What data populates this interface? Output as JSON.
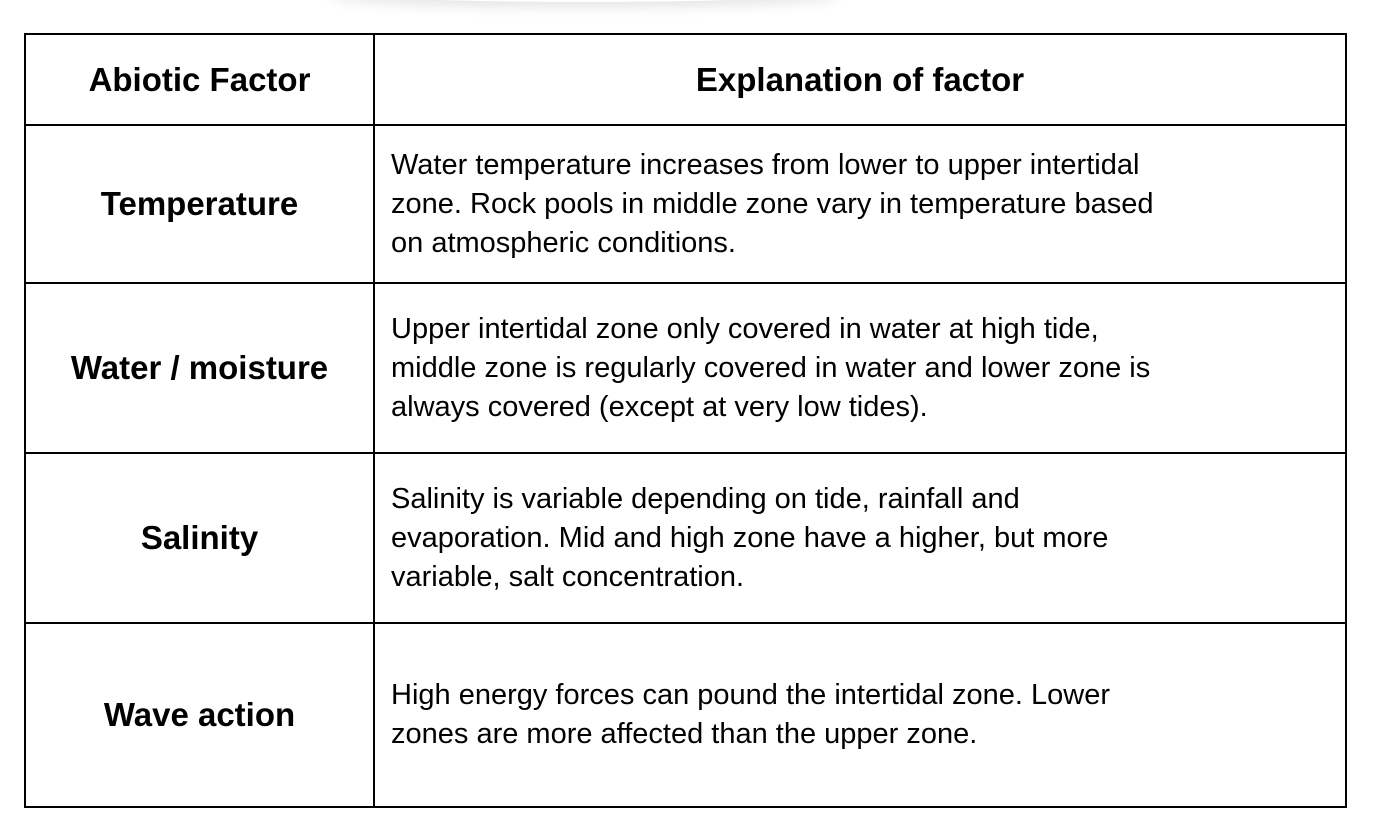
{
  "table": {
    "header": [
      "Abiotic Factor",
      "Explanation of factor"
    ],
    "rows": [
      {
        "factor": "Temperature",
        "explanation": [
          "Water temperature increases from lower to upper intertidal",
          "zone. Rock pools in middle zone vary in temperature based",
          "on atmospheric conditions."
        ]
      },
      {
        "factor": "Water / moisture",
        "explanation": [
          "Upper intertidal zone only covered in water at high tide,",
          "middle zone is regularly covered in water and lower zone is",
          "always covered (except at very low tides)."
        ]
      },
      {
        "factor": "Salinity",
        "explanation": [
          "Salinity is variable depending on tide, rainfall and",
          "evaporation. Mid and high zone have a higher, but more",
          "variable, salt concentration."
        ]
      },
      {
        "factor": "Wave action",
        "explanation": [
          "High energy forces can pound the intertidal zone. Lower",
          "zones are more affected than the upper zone."
        ]
      }
    ]
  }
}
